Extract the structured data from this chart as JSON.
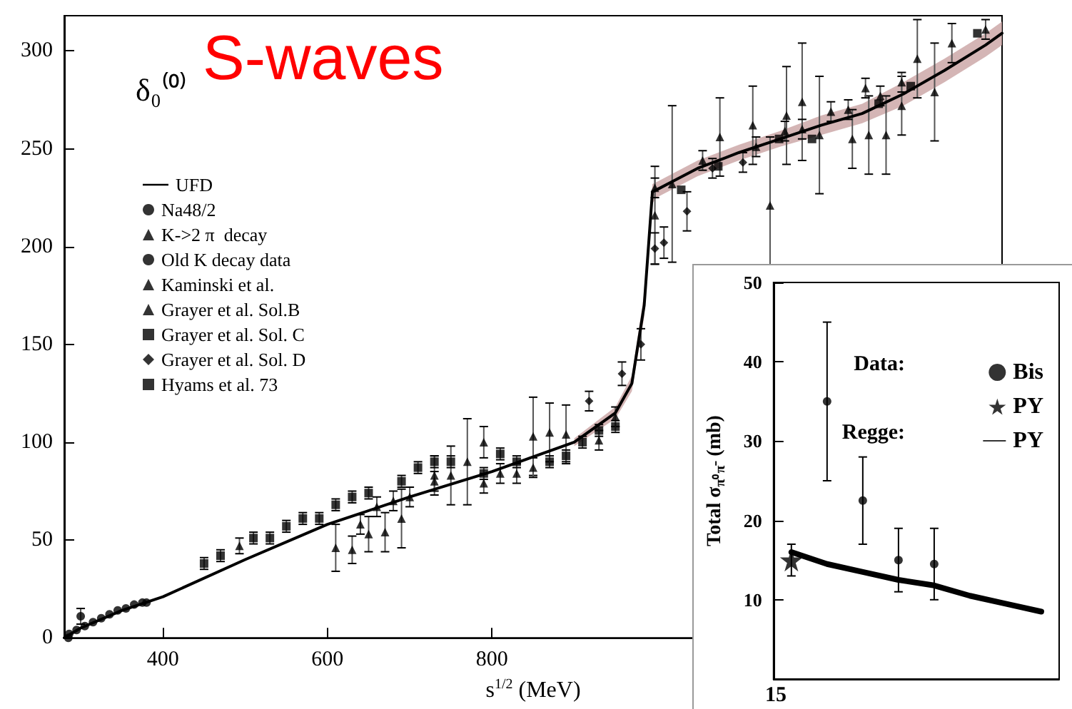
{
  "chart_data": [
    {
      "type": "scatter",
      "title": "S-waves",
      "xlabel": "s$^{1/2}$ (MeV)",
      "ylabel": "δ₀⁽⁰⁾",
      "xlim": [
        280,
        1420
      ],
      "xticks": [
        400,
        600,
        800
      ],
      "ylim": [
        0,
        318
      ],
      "yticks": [
        0,
        50,
        100,
        150,
        200,
        250,
        300
      ],
      "grid": false,
      "legend": "top left",
      "series": [
        {
          "name": "UFD",
          "type": "line",
          "color": "#000000",
          "marker": "none",
          "x": [
            280,
            300,
            350,
            400,
            500,
            600,
            700,
            800,
            900,
            950,
            970,
            985,
            995,
            1000,
            1050,
            1100,
            1150,
            1200,
            1250,
            1300,
            1350,
            1400,
            1420
          ],
          "values": [
            0,
            5,
            14,
            21,
            40,
            58,
            72,
            85,
            100,
            115,
            130,
            170,
            228,
            229,
            240,
            248,
            255,
            262,
            268,
            278,
            290,
            303,
            309
          ],
          "lower": [
            null,
            null,
            null,
            null,
            null,
            null,
            null,
            null,
            98,
            112,
            126,
            164,
            222,
            225,
            236,
            244,
            251,
            257,
            263,
            272,
            284,
            297,
            303
          ],
          "upper": [
            null,
            null,
            null,
            null,
            null,
            null,
            null,
            null,
            102,
            118,
            134,
            176,
            232,
            233,
            244,
            252,
            259,
            267,
            273,
            284,
            296,
            309,
            315
          ]
        },
        {
          "name": "Na48/2",
          "color": "#000000",
          "marker": "circle",
          "x": [
            286,
            295,
            305,
            315,
            325,
            335,
            345,
            355,
            365,
            375
          ],
          "values": [
            2,
            4,
            6,
            8,
            10,
            12,
            14,
            15,
            17,
            18
          ]
        },
        {
          "name": "K->2 π  decay",
          "color": "#000000",
          "marker": "triangle",
          "x": [
            493
          ],
          "values": [
            47
          ],
          "errors": [
            4
          ]
        },
        {
          "name": "Old K decay data",
          "color": "#000000",
          "marker": "circle",
          "x": [
            285,
            300,
            380
          ],
          "values": [
            0,
            11,
            18
          ],
          "errors": [
            null,
            4,
            null
          ]
        },
        {
          "name": "Kaminski et al.",
          "color": "#000000",
          "marker": "triangle",
          "x": [
            610,
            630,
            650,
            670,
            690,
            730,
            750,
            770,
            790,
            810,
            830,
            850,
            870,
            890,
            998,
            1019,
            1077,
            1117,
            1138,
            1158,
            1177,
            1198,
            1238,
            1258,
            1279,
            1298,
            1317,
            1338,
            1359,
            1400
          ],
          "values": [
            46,
            45,
            53,
            54,
            61,
            83,
            83,
            90,
            100,
            null,
            null,
            103,
            105,
            104,
            216,
            232,
            256,
            262,
            221,
            267,
            274,
            257,
            255,
            257,
            257,
            272,
            296,
            279,
            304,
            311
          ],
          "errors": [
            12,
            7,
            9,
            10,
            15,
            10,
            15,
            22,
            8,
            null,
            null,
            20,
            15,
            15,
            25,
            40,
            20,
            20,
            35,
            25,
            30,
            30,
            15,
            20,
            20,
            15,
            20,
            25,
            10,
            5
          ]
        },
        {
          "name": "Grayer et al. Sol.B",
          "color": "#000000",
          "marker": "triangle",
          "x": [
            640,
            660,
            680,
            700,
            730,
            790,
            810,
            830,
            850,
            870,
            930,
            950,
            998,
            1056,
            1121,
            1156,
            1177,
            1212,
            1233,
            1254,
            1272,
            1298
          ],
          "values": [
            58,
            67,
            70,
            72,
            80,
            79,
            84,
            84,
            87,
            null,
            101,
            113,
            230,
            244,
            251,
            259,
            260,
            269,
            270,
            281,
            277,
            284
          ],
          "errors": [
            5,
            5,
            5,
            5,
            5,
            5,
            5,
            5,
            5,
            null,
            5,
            5,
            5,
            5,
            5,
            5,
            5,
            5,
            5,
            5,
            5,
            5
          ]
        },
        {
          "name": "Grayer et al. Sol. C",
          "color": "#000000",
          "marker": "square",
          "x": [
            450,
            470,
            510,
            530,
            550,
            570,
            590,
            610,
            630,
            650,
            690,
            710,
            730,
            750,
            790,
            810,
            830,
            870,
            890,
            910,
            930,
            950
          ],
          "values": [
            38,
            42,
            51,
            51,
            57,
            61,
            61,
            68,
            72,
            74,
            80,
            87,
            90,
            90,
            84,
            94,
            90,
            90,
            93,
            100,
            106,
            108
          ],
          "errors": [
            3,
            3,
            3,
            3,
            3,
            3,
            3,
            3,
            3,
            3,
            3,
            3,
            3,
            3,
            3,
            3,
            3,
            3,
            3,
            3,
            3,
            3
          ]
        },
        {
          "name": "Grayer et al. Sol. D",
          "color": "#000000",
          "marker": "diamond",
          "x": [
            918,
            958,
            981,
            998,
            1009,
            1037,
            1068,
            1105
          ],
          "values": [
            121,
            135,
            150,
            199,
            202,
            218,
            240,
            243
          ],
          "errors": [
            5,
            6,
            8,
            8,
            8,
            10,
            5,
            5
          ]
        },
        {
          "name": "Hyams et al. 73",
          "color": "#000000",
          "marker": "square",
          "x": [
            1030,
            1075,
            1149,
            1189,
            1270,
            1309,
            1390
          ],
          "values": [
            229,
            241,
            255,
            255,
            273,
            282,
            309
          ]
        }
      ]
    },
    {
      "type": "scatter",
      "ylabel": "Total σ$_{π⁰π⁻}$ (mb)",
      "categories": [
        null,
        null,
        null,
        null,
        null,
        null,
        null,
        null
      ],
      "ylim": [
        0,
        50
      ],
      "yticks": [
        10,
        20,
        30,
        40,
        50
      ],
      "grid": false,
      "legend": "top right",
      "tick_labels": "y",
      "annotations": [
        "Data:",
        "Regge:",
        "15"
      ],
      "series": [
        {
          "name": "Bis",
          "color": "#000000",
          "marker": "circle",
          "values": [
            null,
            35,
            22.5,
            15,
            14.5,
            null,
            null,
            null
          ],
          "errors": [
            null,
            10,
            5.5,
            4,
            4.5,
            null,
            null,
            null
          ]
        },
        {
          "name": "PY",
          "color": "#000000",
          "marker": "star",
          "values": [
            15,
            null,
            null,
            null,
            null,
            null,
            null,
            null
          ],
          "errors": [
            2,
            null,
            null,
            null,
            null,
            null,
            null,
            null
          ]
        },
        {
          "name": "PY",
          "type": "line",
          "color": "#000000",
          "marker": "none",
          "values": [
            16,
            14.5,
            13.5,
            12.5,
            11.8,
            10.5,
            9.5,
            8.5
          ]
        }
      ]
    }
  ]
}
